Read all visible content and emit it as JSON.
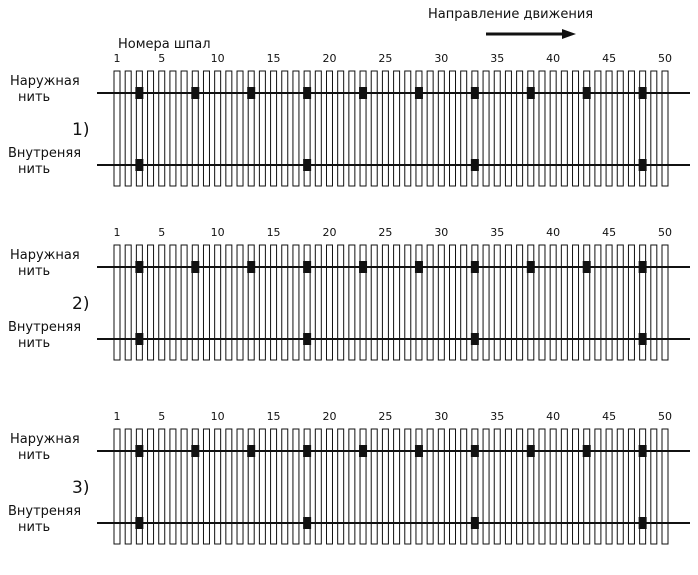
{
  "header": {
    "direction": "Направление движения",
    "sleeper_numbers": "Номера шпал"
  },
  "labels": {
    "outer": [
      "Наружная",
      "нить"
    ],
    "inner": [
      "Внутреняя",
      "нить"
    ]
  },
  "sleeper_ticks": [
    1,
    5,
    10,
    15,
    20,
    25,
    30,
    35,
    40,
    45,
    50
  ],
  "panels": [
    {
      "label": "1)"
    },
    {
      "label": "2)"
    },
    {
      "label": "3)"
    }
  ]
}
